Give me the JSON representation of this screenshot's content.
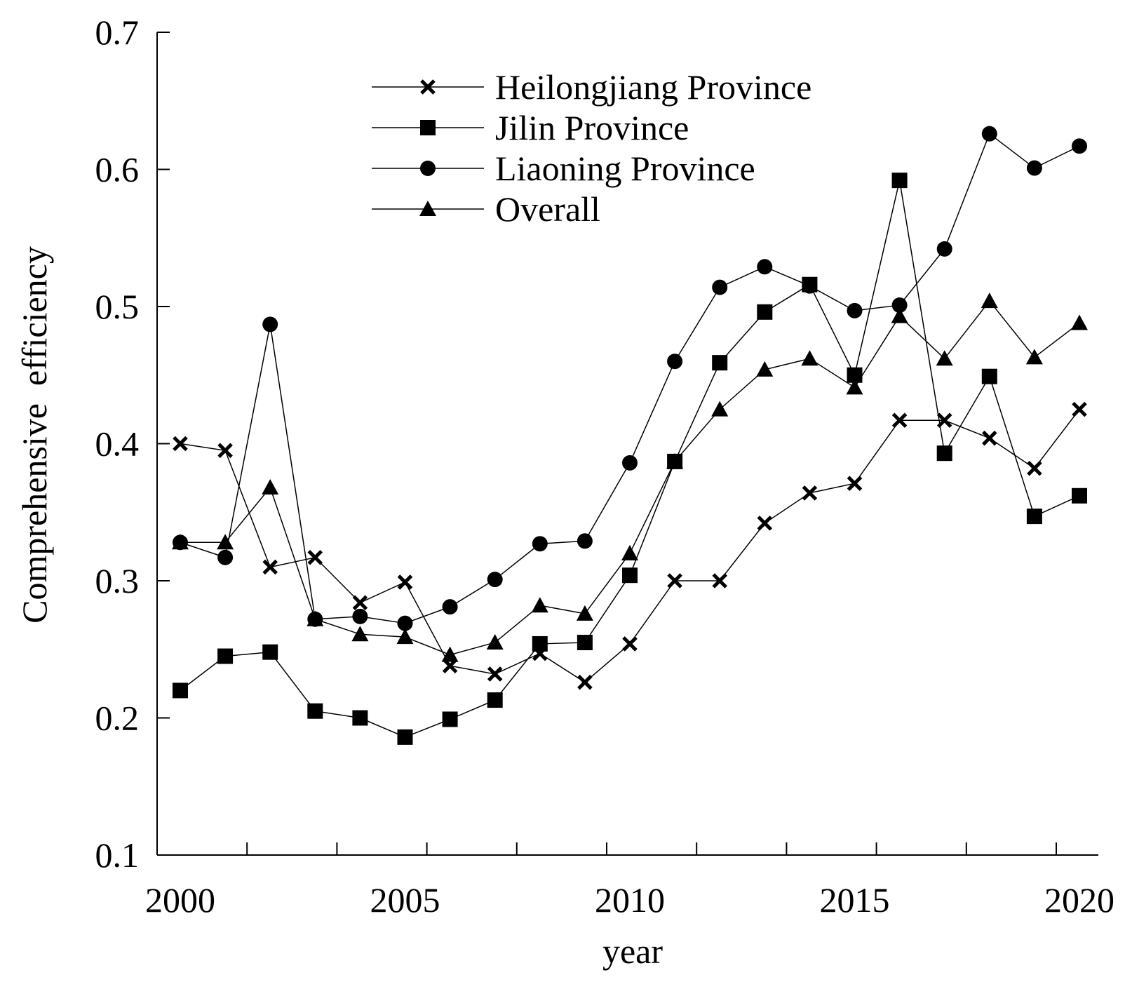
{
  "chart_data": {
    "type": "line",
    "title": "",
    "xlabel": "year",
    "ylabel": "Comprehensive  efficiency",
    "x": [
      2000,
      2001,
      2002,
      2003,
      2004,
      2005,
      2006,
      2007,
      2008,
      2009,
      2010,
      2011,
      2012,
      2013,
      2014,
      2015,
      2016,
      2017,
      2018,
      2019,
      2020
    ],
    "xlim": [
      2000,
      2021
    ],
    "ylim": [
      0.1,
      0.7
    ],
    "x_tick_labels": [
      "2000",
      "2005",
      "2010",
      "2015",
      "2020"
    ],
    "y_tick_labels": [
      "0.1",
      "0.2",
      "0.3",
      "0.4",
      "0.5",
      "0.6",
      "0.7"
    ],
    "grid": false,
    "legend_position": "top-center",
    "series": [
      {
        "name": "Heilongjiang Province",
        "marker": "x",
        "values": [
          0.4,
          0.395,
          0.31,
          0.317,
          0.284,
          0.299,
          0.238,
          0.232,
          0.247,
          0.226,
          0.254,
          0.3,
          0.3,
          0.342,
          0.364,
          0.371,
          0.417,
          0.417,
          0.404,
          0.382,
          0.425
        ]
      },
      {
        "name": "Jilin Province",
        "marker": "square",
        "values": [
          0.22,
          0.245,
          0.248,
          0.205,
          0.2,
          0.186,
          0.199,
          0.213,
          0.254,
          0.255,
          0.304,
          0.387,
          0.459,
          0.496,
          0.516,
          0.45,
          0.592,
          0.393,
          0.449,
          0.347,
          0.362
        ]
      },
      {
        "name": "Liaoning Province",
        "marker": "circle",
        "values": [
          0.328,
          0.317,
          0.487,
          0.272,
          0.274,
          0.269,
          0.281,
          0.301,
          0.327,
          0.329,
          0.386,
          0.46,
          0.514,
          0.529,
          0.515,
          0.497,
          0.501,
          0.542,
          0.626,
          0.601,
          0.617
        ]
      },
      {
        "name": "Overall",
        "marker": "triangle",
        "values": [
          0.328,
          0.328,
          0.368,
          0.272,
          0.261,
          0.259,
          0.246,
          0.255,
          0.282,
          0.276,
          0.32,
          0.387,
          0.425,
          0.454,
          0.462,
          0.441,
          0.493,
          0.462,
          0.504,
          0.463,
          0.488
        ]
      }
    ]
  }
}
